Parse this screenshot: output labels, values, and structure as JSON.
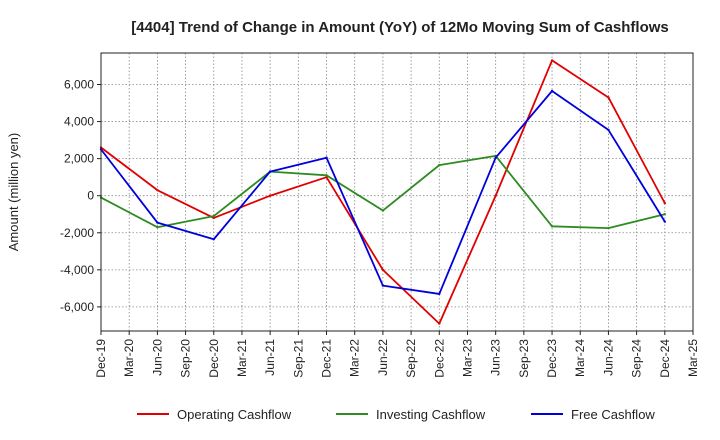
{
  "chart_data": {
    "type": "line",
    "title": "[4404]  Trend of Change in Amount (YoY) of 12Mo Moving Sum of Cashflows",
    "xlabel": "",
    "ylabel": "Amount (million yen)",
    "ylim": [
      -7300,
      7700
    ],
    "yticks": [
      -6000,
      -4000,
      -2000,
      0,
      2000,
      4000,
      6000
    ],
    "ytick_labels": [
      "-6,000",
      "-4,000",
      "-2,000",
      "0",
      "2,000",
      "4,000",
      "6,000"
    ],
    "x_tick_labels": [
      "Dec-19",
      "Mar-20",
      "Jun-20",
      "Sep-20",
      "Dec-20",
      "Mar-21",
      "Jun-21",
      "Sep-21",
      "Dec-21",
      "Mar-22",
      "Jun-22",
      "Sep-22",
      "Dec-22",
      "Mar-23",
      "Jun-23",
      "Sep-23",
      "Dec-23",
      "Mar-24",
      "Jun-24",
      "Sep-24",
      "Dec-24",
      "Mar-25"
    ],
    "point_labels": [
      "Dec-19",
      "Jun-20",
      "Dec-20",
      "Jun-21",
      "Dec-21",
      "Jun-22",
      "Dec-22",
      "Jun-23",
      "Dec-23",
      "Jun-24",
      "Dec-24"
    ],
    "point_index": [
      0,
      2,
      4,
      6,
      8,
      10,
      12,
      14,
      16,
      18,
      20
    ],
    "grid": true,
    "legend_position": "bottom",
    "series": [
      {
        "name": "Operating Cashflow",
        "color": "#e00000",
        "values": [
          2600,
          300,
          -1200,
          0,
          1000,
          -4000,
          -6900,
          0,
          7300,
          5300,
          -400
        ]
      },
      {
        "name": "Investing Cashflow",
        "color": "#2e8b22",
        "values": [
          -100,
          -1700,
          -1100,
          1300,
          1100,
          -800,
          1650,
          2150,
          -1650,
          -1750,
          -1000
        ]
      },
      {
        "name": "Free Cashflow",
        "color": "#0000dd",
        "values": [
          2500,
          -1450,
          -2350,
          1300,
          2050,
          -4850,
          -5300,
          2050,
          5650,
          3550,
          -1400
        ]
      }
    ]
  }
}
